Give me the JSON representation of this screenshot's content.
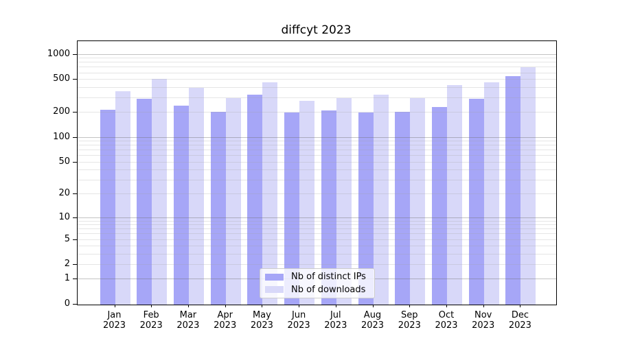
{
  "chart_data": {
    "type": "bar",
    "title": "diffcyt 2023",
    "categories": [
      "Jan",
      "Feb",
      "Mar",
      "Apr",
      "May",
      "Jun",
      "Jul",
      "Aug",
      "Sep",
      "Oct",
      "Nov",
      "Dec"
    ],
    "year_label": "2023",
    "series": [
      {
        "name": "Nb of distinct IPs",
        "color": "#a6a6f7",
        "values": [
          219,
          293,
          245,
          205,
          328,
          202,
          215,
          201,
          207,
          234,
          295,
          555
        ]
      },
      {
        "name": "Nb of downloads",
        "color": "#d8d8f9",
        "values": [
          364,
          515,
          397,
          298,
          468,
          277,
          300,
          328,
          300,
          428,
          466,
          707
        ]
      }
    ],
    "xlabel": "",
    "ylabel": "",
    "yscale": "log1p",
    "y_ticks": [
      1000,
      500,
      200,
      100,
      50,
      20,
      10,
      5,
      2,
      1,
      0
    ],
    "ylim": [
      0,
      1450
    ],
    "grid": "both",
    "legend_position": "lower center"
  }
}
